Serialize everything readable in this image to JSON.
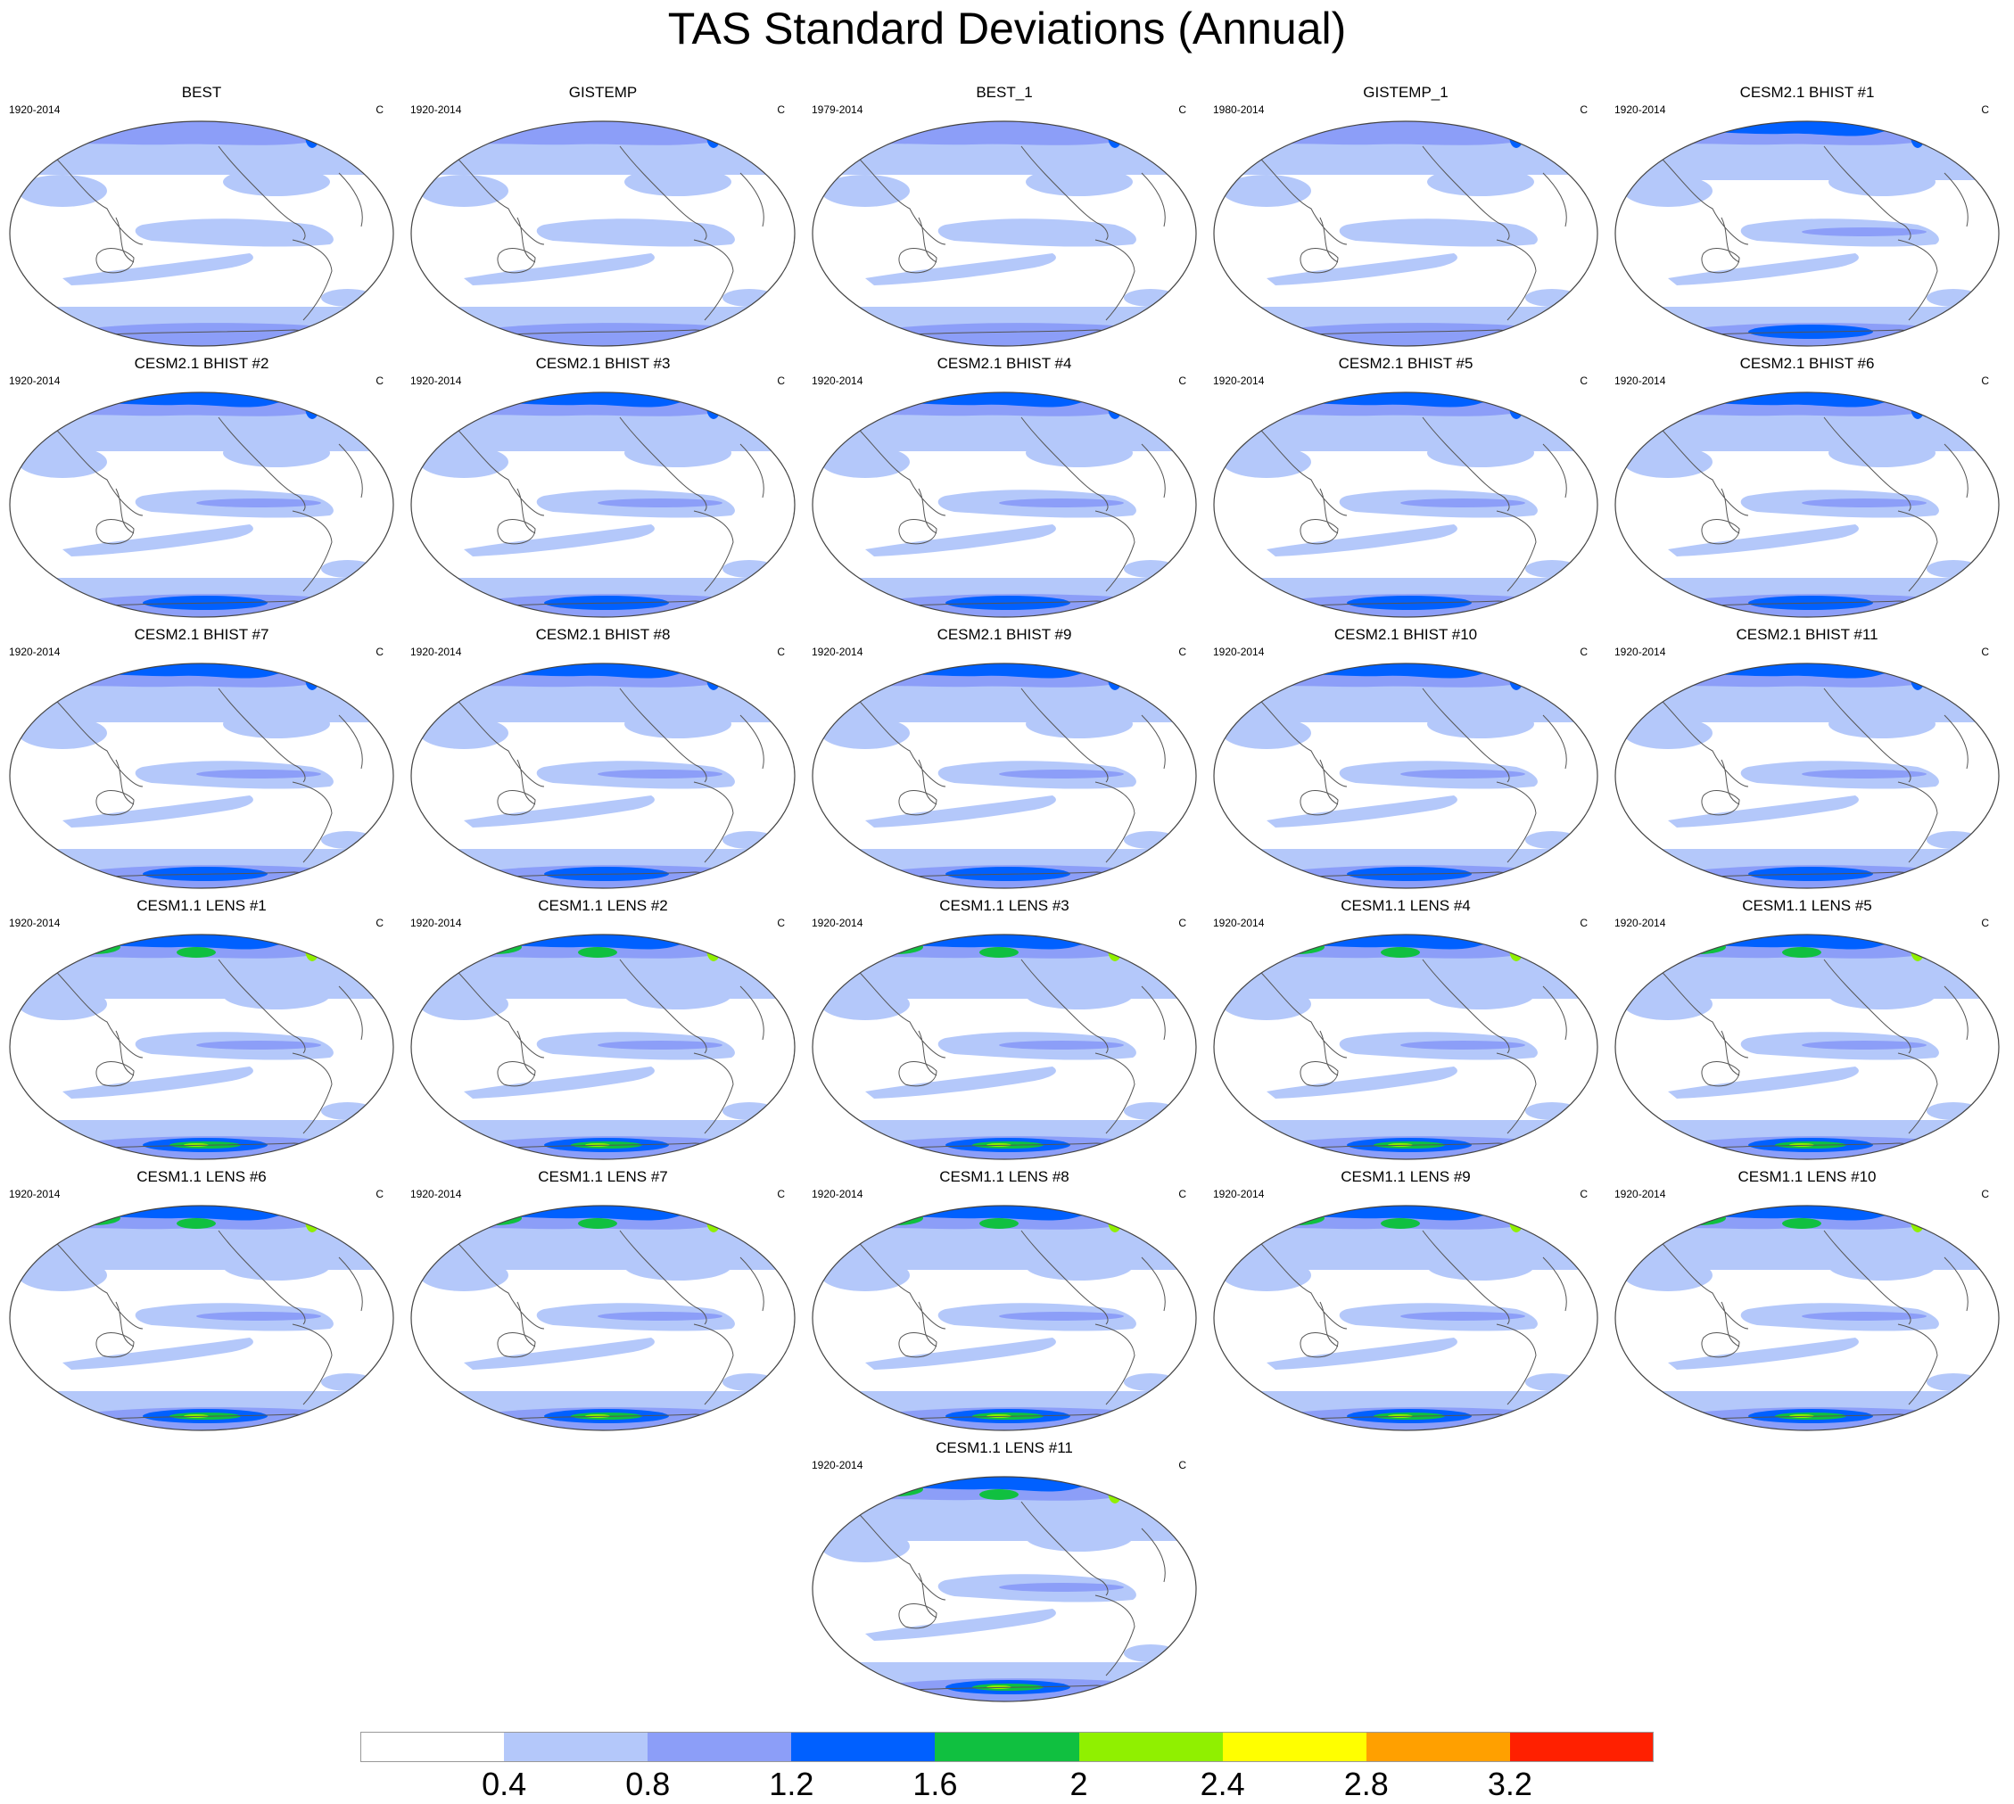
{
  "title": "TAS Standard Deviations (Annual)",
  "units": "C",
  "panels": [
    {
      "title": "BEST",
      "period": "1920-2014",
      "units": "C",
      "intensity": 0
    },
    {
      "title": "GISTEMP",
      "period": "1920-2014",
      "units": "C",
      "intensity": 0
    },
    {
      "title": "BEST_1",
      "period": "1979-2014",
      "units": "C",
      "intensity": 0
    },
    {
      "title": "GISTEMP_1",
      "period": "1980-2014",
      "units": "C",
      "intensity": 0
    },
    {
      "title": "CESM2.1 BHIST #1",
      "period": "1920-2014",
      "units": "C",
      "intensity": 1
    },
    {
      "title": "CESM2.1 BHIST #2",
      "period": "1920-2014",
      "units": "C",
      "intensity": 1
    },
    {
      "title": "CESM2.1 BHIST #3",
      "period": "1920-2014",
      "units": "C",
      "intensity": 1
    },
    {
      "title": "CESM2.1 BHIST #4",
      "period": "1920-2014",
      "units": "C",
      "intensity": 1
    },
    {
      "title": "CESM2.1 BHIST #5",
      "period": "1920-2014",
      "units": "C",
      "intensity": 1
    },
    {
      "title": "CESM2.1 BHIST #6",
      "period": "1920-2014",
      "units": "C",
      "intensity": 1
    },
    {
      "title": "CESM2.1 BHIST #7",
      "period": "1920-2014",
      "units": "C",
      "intensity": 1
    },
    {
      "title": "CESM2.1 BHIST #8",
      "period": "1920-2014",
      "units": "C",
      "intensity": 1
    },
    {
      "title": "CESM2.1 BHIST #9",
      "period": "1920-2014",
      "units": "C",
      "intensity": 1
    },
    {
      "title": "CESM2.1 BHIST #10",
      "period": "1920-2014",
      "units": "C",
      "intensity": 1
    },
    {
      "title": "CESM2.1 BHIST #11",
      "period": "1920-2014",
      "units": "C",
      "intensity": 1
    },
    {
      "title": "CESM1.1 LENS #1",
      "period": "1920-2014",
      "units": "C",
      "intensity": 2
    },
    {
      "title": "CESM1.1 LENS #2",
      "period": "1920-2014",
      "units": "C",
      "intensity": 2
    },
    {
      "title": "CESM1.1 LENS #3",
      "period": "1920-2014",
      "units": "C",
      "intensity": 2
    },
    {
      "title": "CESM1.1 LENS #4",
      "period": "1920-2014",
      "units": "C",
      "intensity": 2
    },
    {
      "title": "CESM1.1 LENS #5",
      "period": "1920-2014",
      "units": "C",
      "intensity": 2
    },
    {
      "title": "CESM1.1 LENS #6",
      "period": "1920-2014",
      "units": "C",
      "intensity": 2
    },
    {
      "title": "CESM1.1 LENS #7",
      "period": "1920-2014",
      "units": "C",
      "intensity": 2
    },
    {
      "title": "CESM1.1 LENS #8",
      "period": "1920-2014",
      "units": "C",
      "intensity": 2
    },
    {
      "title": "CESM1.1 LENS #9",
      "period": "1920-2014",
      "units": "C",
      "intensity": 2
    },
    {
      "title": "CESM1.1 LENS #10",
      "period": "1920-2014",
      "units": "C",
      "intensity": 2
    },
    {
      "title": "CESM1.1 LENS #11",
      "period": "1920-2014",
      "units": "C",
      "intensity": 2
    }
  ],
  "colorbar": {
    "colors": [
      "#ffffff",
      "#b4c8fa",
      "#8c9ef8",
      "#0060ff",
      "#10c040",
      "#90f000",
      "#ffff00",
      "#ffa000",
      "#ff2000"
    ],
    "ticks": [
      "0.4",
      "0.8",
      "1.2",
      "1.6",
      "2",
      "2.4",
      "2.8",
      "3.2"
    ]
  }
}
